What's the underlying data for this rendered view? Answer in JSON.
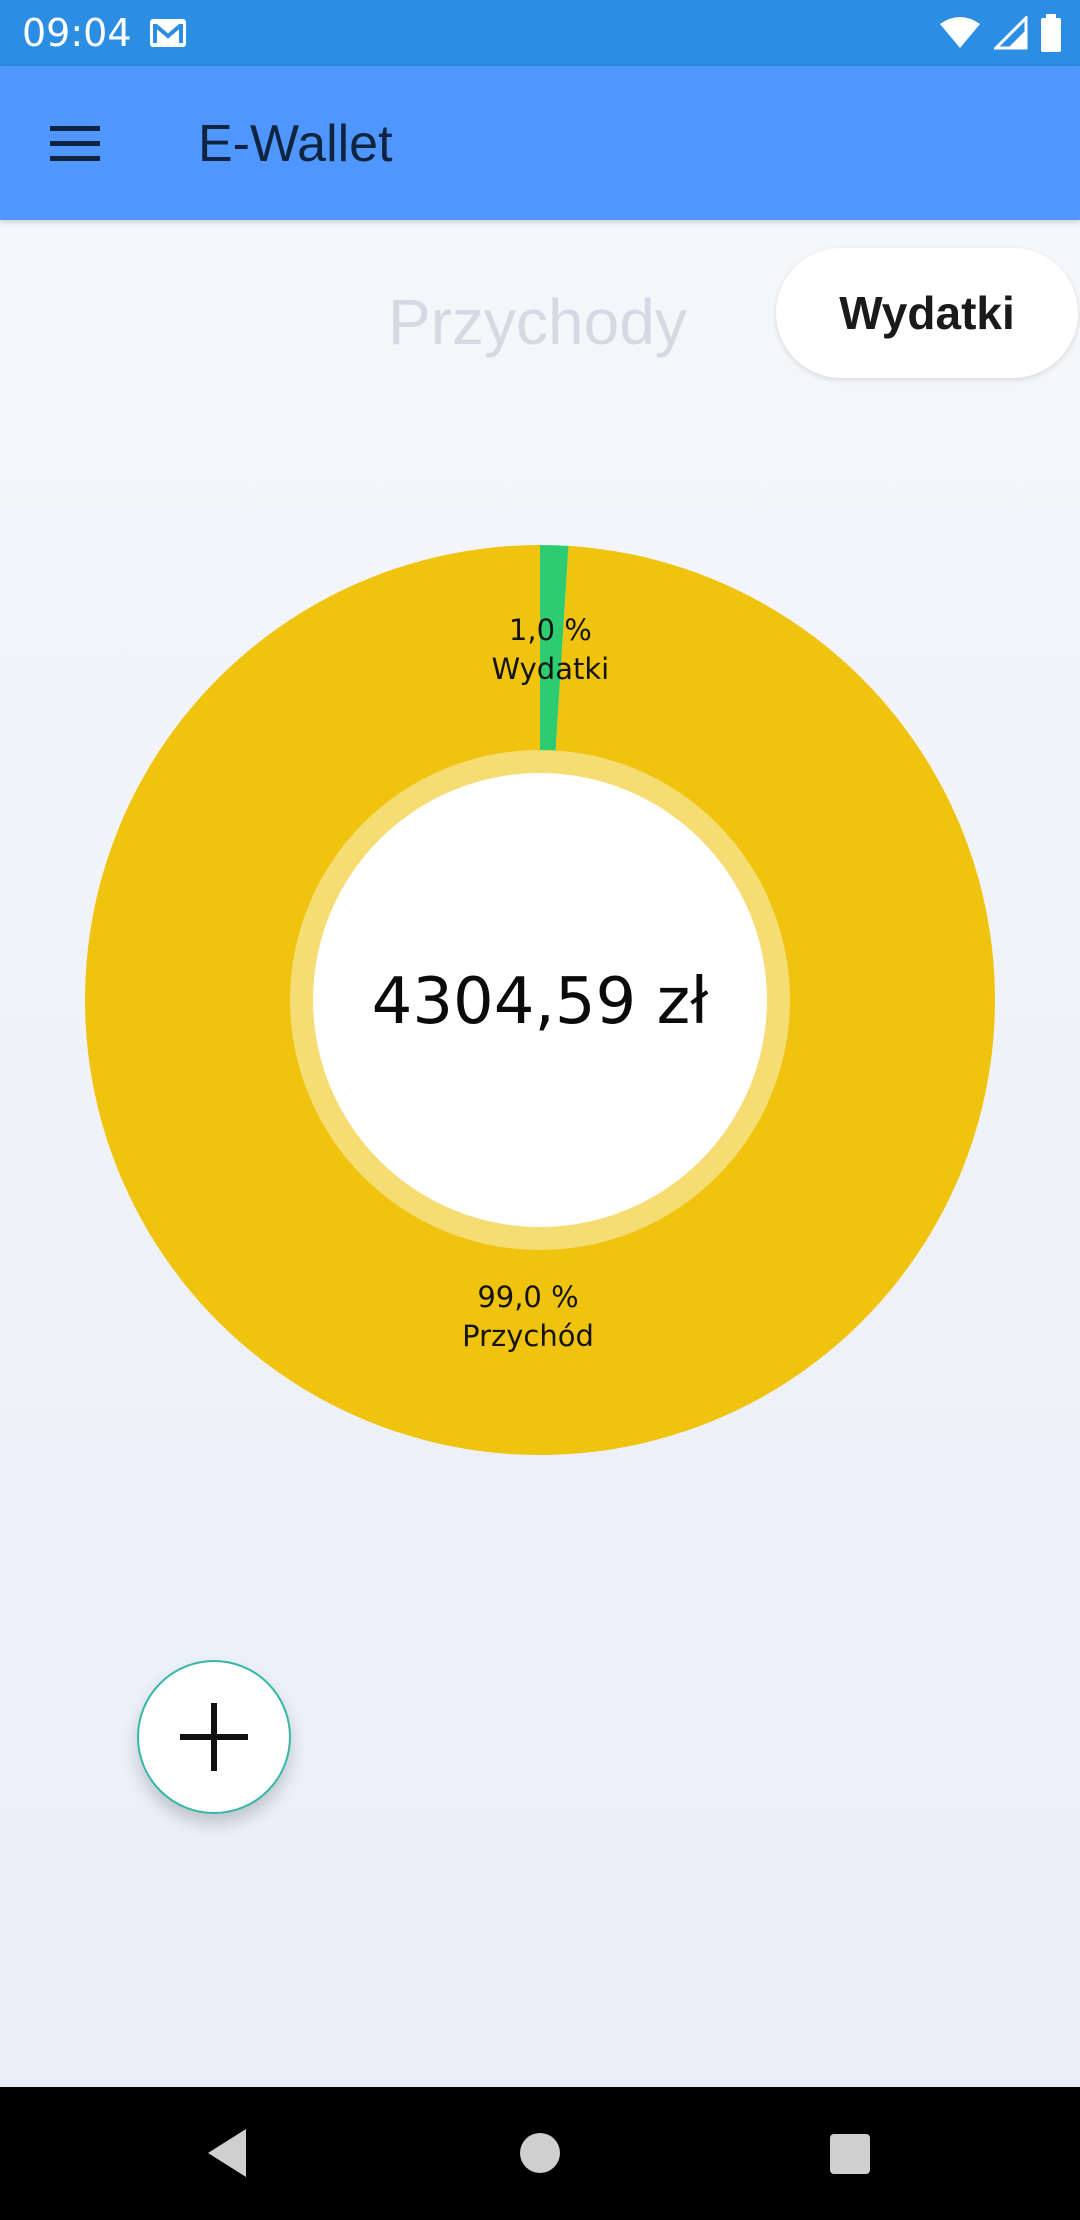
{
  "status_bar": {
    "time": "09:04",
    "icons": [
      "gmail-icon",
      "wifi-icon",
      "signal-icon",
      "battery-icon"
    ]
  },
  "app_bar": {
    "menu_icon": "menu-icon",
    "title": "E-Wallet"
  },
  "tabs": {
    "income_label": "Przychody",
    "expenses_label": "Wydatki"
  },
  "chart_data": {
    "type": "pie",
    "style": "donut",
    "center_text": "4304,59 zł",
    "slices": [
      {
        "label": "Wydatki",
        "percent_label": "1,0 %",
        "value": 1.0,
        "color": "#2ecc71"
      },
      {
        "label": "Przychód",
        "percent_label": "99,0 %",
        "value": 99.0,
        "color": "#f0c30f"
      }
    ]
  },
  "fab": {
    "icon": "plus-icon"
  },
  "nav_bar": {
    "icons": [
      "back-icon",
      "home-icon",
      "recents-icon"
    ]
  },
  "colors": {
    "status_bar": "#2b8ee3",
    "app_bar": "#4f97ff",
    "income_slice": "#f0c30f",
    "expense_slice": "#2ecc71",
    "fab_border": "#37b7a7"
  }
}
